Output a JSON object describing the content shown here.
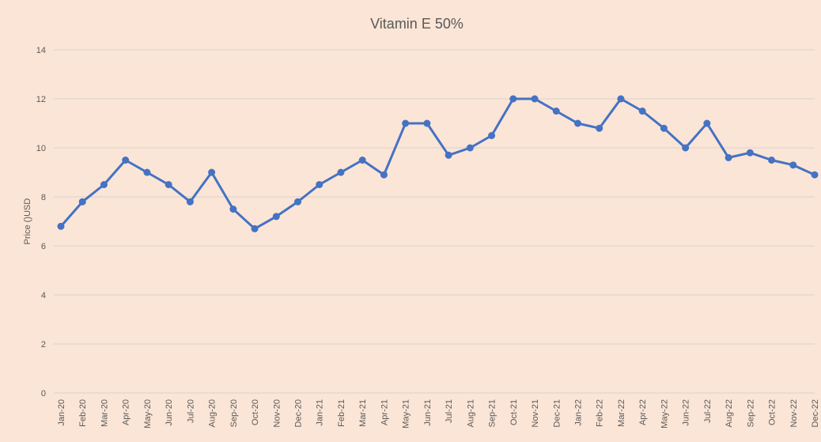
{
  "chart_data": {
    "type": "line",
    "title": "Vitamin E 50%",
    "y_label": "Price ()USD",
    "categories": [
      "Jan-20",
      "Feb-20",
      "Mar-20",
      "Apr-20",
      "May-20",
      "Jun-20",
      "Jul-20",
      "Aug-20",
      "Sep-20",
      "Oct-20",
      "Nov-20",
      "Dec-20",
      "Jan-21",
      "Feb-21",
      "Mar-21",
      "Apr-21",
      "May-21",
      "Jun-21",
      "Jul-21",
      "Aug-21",
      "Sep-21",
      "Oct-21",
      "Nov-21",
      "Dec-21",
      "Jan-22",
      "Feb-22",
      "Mar-22",
      "Apr-22",
      "May-22",
      "Jun-22",
      "Jul-22",
      "Aug-22",
      "Sep-22",
      "Oct-22",
      "Nov-22",
      "Dec-22"
    ],
    "series": [
      {
        "name": "Vitamin E 50%",
        "color": "#4472c4",
        "values": [
          6.8,
          7.8,
          8.5,
          9.5,
          9.0,
          8.5,
          7.8,
          9.0,
          7.5,
          6.7,
          7.2,
          7.8,
          8.5,
          9.0,
          9.5,
          8.9,
          11.0,
          11.0,
          9.7,
          10.0,
          10.5,
          12.0,
          12.0,
          11.5,
          11.0,
          10.8,
          12.0,
          11.5,
          10.8,
          10.0,
          11.0,
          9.6,
          9.8,
          9.5,
          9.3,
          8.9
        ]
      }
    ],
    "ylim": [
      0,
      14
    ],
    "yticks": [
      0,
      2,
      4,
      6,
      8,
      10,
      12,
      14
    ],
    "grid": true
  }
}
